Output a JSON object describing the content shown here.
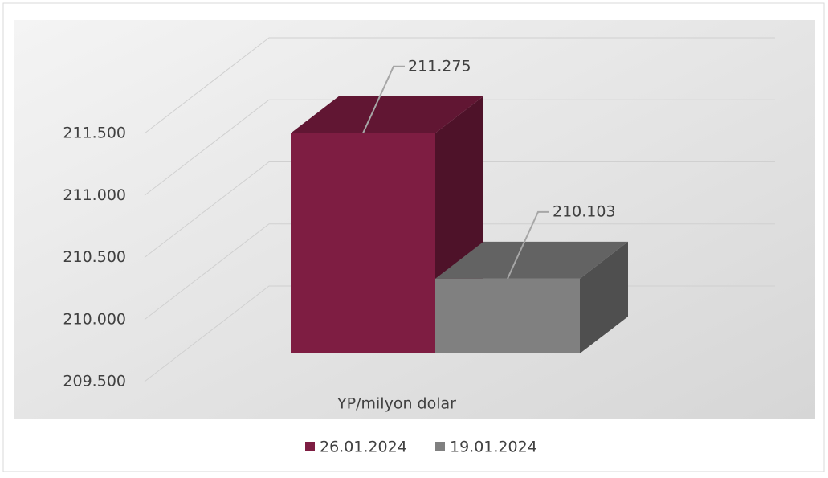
{
  "chart_data": {
    "type": "bar3d",
    "categories": [
      "YP/milyon dolar"
    ],
    "series": [
      {
        "name": "26.01.2024",
        "color": "#7e1d42",
        "values": [
          211275
        ],
        "value_labels": [
          "211.275"
        ]
      },
      {
        "name": "19.01.2024",
        "color": "#808080",
        "values": [
          210103
        ],
        "value_labels": [
          "210.103"
        ]
      }
    ],
    "ylim": [
      209500,
      211500
    ],
    "yticks": [
      {
        "value": 209500,
        "label": "209.500"
      },
      {
        "value": 210000,
        "label": "210.000"
      },
      {
        "value": 210500,
        "label": "210.500"
      },
      {
        "value": 211000,
        "label": "211.000"
      },
      {
        "value": 211500,
        "label": "211.500"
      }
    ],
    "grid": true,
    "legend": "bottom"
  }
}
